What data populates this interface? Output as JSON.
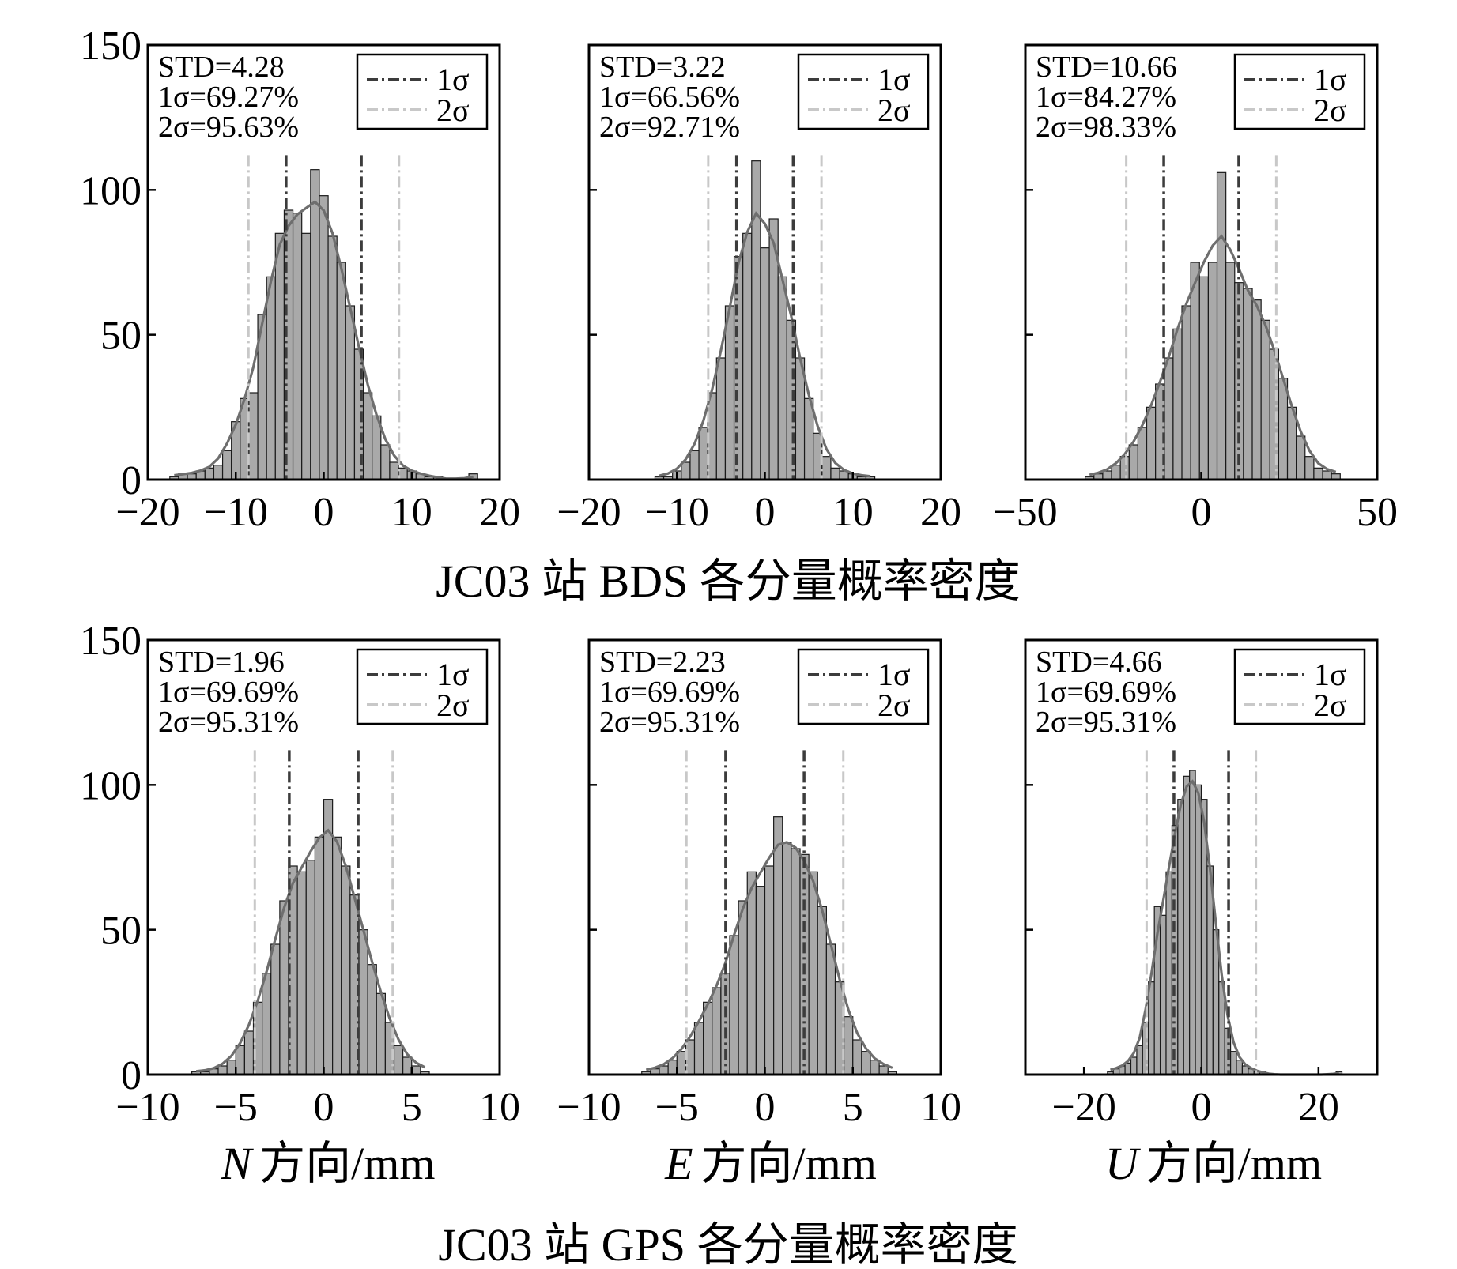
{
  "colors": {
    "bar_fill": "#a9a9a9",
    "bar_stroke": "#1a1a1a",
    "curve": "#6e6e6e",
    "sigma1": "#3c3c3c",
    "sigma2": "#c8c8c8",
    "frame": "#000000"
  },
  "titles": {
    "bds": "JC03 站 BDS 各分量概率密度",
    "gps": "JC03 站 GPS 各分量概率密度"
  },
  "axis_labels": [
    {
      "var": "N",
      "rest": "方向/mm"
    },
    {
      "var": "E",
      "rest": "方向/mm"
    },
    {
      "var": "U",
      "rest": "方向/mm"
    }
  ],
  "legend": {
    "s1": "1σ",
    "s2": "2σ"
  },
  "chart_data": [
    {
      "type": "bar",
      "id": "bds-n",
      "group": "BDS",
      "component": "N",
      "xlim": [
        -20,
        20
      ],
      "ylim": [
        0,
        150
      ],
      "xticks": [
        -20,
        -10,
        0,
        10,
        20
      ],
      "yticks": [
        0,
        50,
        100,
        150
      ],
      "show_y_labels": true,
      "std": 4.28,
      "stats": [
        "STD=4.28",
        "1σ=69.27%",
        "2σ=95.63%"
      ],
      "bin_start": -17.5,
      "bin_width": 1,
      "values": [
        1,
        2,
        2,
        3,
        4,
        5,
        10,
        20,
        28,
        30,
        57,
        70,
        85,
        93,
        92,
        85,
        107,
        98,
        84,
        75,
        60,
        45,
        30,
        22,
        12,
        6,
        4,
        3,
        2,
        1,
        1,
        0,
        0,
        0,
        2
      ]
    },
    {
      "type": "bar",
      "id": "bds-e",
      "group": "BDS",
      "component": "E",
      "xlim": [
        -20,
        20
      ],
      "ylim": [
        0,
        150
      ],
      "xticks": [
        -20,
        -10,
        0,
        10,
        20
      ],
      "yticks": [
        0,
        50,
        100,
        150
      ],
      "show_y_labels": false,
      "std": 3.22,
      "stats": [
        "STD=3.22",
        "1σ=66.56%",
        "2σ=92.71%"
      ],
      "bin_start": -12.5,
      "bin_width": 1,
      "values": [
        1,
        1,
        3,
        6,
        10,
        18,
        30,
        42,
        60,
        77,
        85,
        110,
        80,
        90,
        70,
        55,
        42,
        28,
        16,
        8,
        4,
        3,
        2,
        1,
        1
      ]
    },
    {
      "type": "bar",
      "id": "bds-u",
      "group": "BDS",
      "component": "U",
      "xlim": [
        -50,
        50
      ],
      "ylim": [
        0,
        150
      ],
      "xticks": [
        -50,
        0,
        50
      ],
      "yticks": [
        0,
        50,
        100,
        150
      ],
      "show_y_labels": false,
      "std": 10.66,
      "stats": [
        "STD=10.66",
        "1σ=84.27%",
        "2σ=98.33%"
      ],
      "bin_start": -33,
      "bin_width": 2.5,
      "values": [
        1,
        2,
        3,
        5,
        8,
        12,
        18,
        25,
        33,
        42,
        52,
        60,
        75,
        70,
        75,
        106,
        75,
        68,
        66,
        62,
        55,
        45,
        35,
        25,
        15,
        8,
        4,
        3,
        2
      ]
    },
    {
      "type": "bar",
      "id": "gps-n",
      "group": "GPS",
      "component": "N",
      "xlim": [
        -10,
        10
      ],
      "ylim": [
        0,
        150
      ],
      "xticks": [
        -10,
        -5,
        0,
        5,
        10
      ],
      "yticks": [
        0,
        50,
        100,
        150
      ],
      "show_y_labels": true,
      "std": 1.96,
      "stats": [
        "STD=1.96",
        "1σ=69.69%",
        "2σ=95.31%"
      ],
      "bin_start": -7.5,
      "bin_width": 0.5,
      "values": [
        1,
        1,
        2,
        3,
        5,
        10,
        15,
        25,
        35,
        45,
        60,
        72,
        70,
        74,
        82,
        95,
        82,
        72,
        62,
        50,
        38,
        28,
        18,
        10,
        6,
        3,
        1
      ]
    },
    {
      "type": "bar",
      "id": "gps-e",
      "group": "GPS",
      "component": "E",
      "xlim": [
        -10,
        10
      ],
      "ylim": [
        0,
        150
      ],
      "xticks": [
        -10,
        -5,
        0,
        5,
        10
      ],
      "yticks": [
        0,
        50,
        100,
        150
      ],
      "show_y_labels": false,
      "std": 2.23,
      "stats": [
        "STD=2.23",
        "1σ=69.69%",
        "2σ=95.31%"
      ],
      "bin_start": -7,
      "bin_width": 0.5,
      "values": [
        1,
        2,
        3,
        5,
        8,
        12,
        18,
        25,
        30,
        35,
        48,
        60,
        70,
        65,
        72,
        89,
        80,
        78,
        76,
        70,
        58,
        45,
        32,
        20,
        12,
        8,
        5,
        3,
        1
      ]
    },
    {
      "type": "bar",
      "id": "gps-u",
      "group": "GPS",
      "component": "U",
      "xlim": [
        -30,
        30
      ],
      "ylim": [
        0,
        150
      ],
      "xticks": [
        -20,
        0,
        20
      ],
      "yticks": [
        0,
        50,
        100,
        150
      ],
      "show_y_labels": false,
      "std": 4.66,
      "stats": [
        "STD=4.66",
        "1σ=69.69%",
        "2σ=95.31%"
      ],
      "bin_start": -16,
      "bin_width": 1,
      "values": [
        1,
        2,
        3,
        4,
        6,
        10,
        18,
        32,
        58,
        55,
        70,
        86,
        95,
        103,
        105,
        100,
        95,
        72,
        50,
        32,
        16,
        8,
        5,
        3,
        2,
        1,
        1,
        0,
        0,
        0,
        0,
        0,
        0,
        0,
        0,
        0,
        0,
        0,
        0,
        1
      ]
    }
  ]
}
